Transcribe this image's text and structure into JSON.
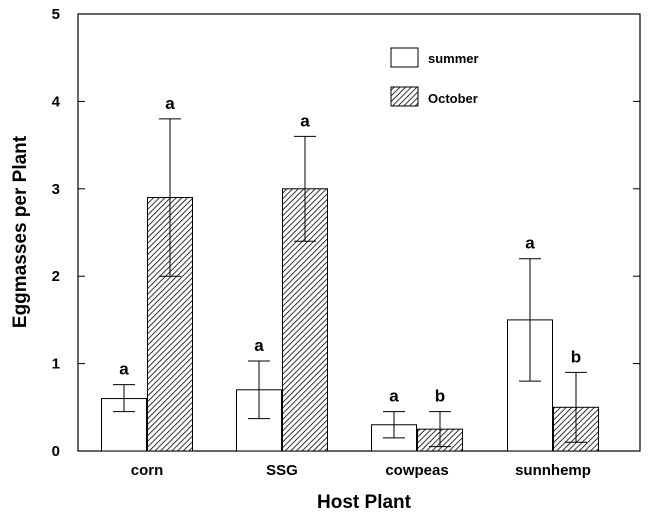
{
  "chart_data": {
    "type": "bar",
    "title": "",
    "xlabel": "Host Plant",
    "ylabel": "Eggmasses per Plant",
    "ylim": [
      0,
      5
    ],
    "yticks": [
      "0",
      "1",
      "2",
      "3",
      "4",
      "5"
    ],
    "categories": [
      "corn",
      "SSG",
      "cowpeas",
      "sunnhemp"
    ],
    "legend_position": "top-right",
    "grid": false,
    "series": [
      {
        "name": "summer",
        "fill": "#ffffff",
        "pattern": "none",
        "values": [
          0.6,
          0.7,
          0.3,
          1.5
        ],
        "err_low": [
          0.45,
          0.37,
          0.15,
          0.8
        ],
        "err_high": [
          0.76,
          1.03,
          0.45,
          2.2
        ],
        "letters": [
          "a",
          "a",
          "a",
          "a"
        ]
      },
      {
        "name": "October",
        "fill": "#ffffff",
        "pattern": "diagonal-hatch",
        "values": [
          2.9,
          3.0,
          0.25,
          0.5
        ],
        "err_low": [
          2.0,
          2.4,
          0.05,
          0.1
        ],
        "err_high": [
          3.8,
          3.6,
          0.45,
          0.9
        ],
        "letters": [
          "a",
          "a",
          "b",
          "b"
        ]
      }
    ]
  }
}
